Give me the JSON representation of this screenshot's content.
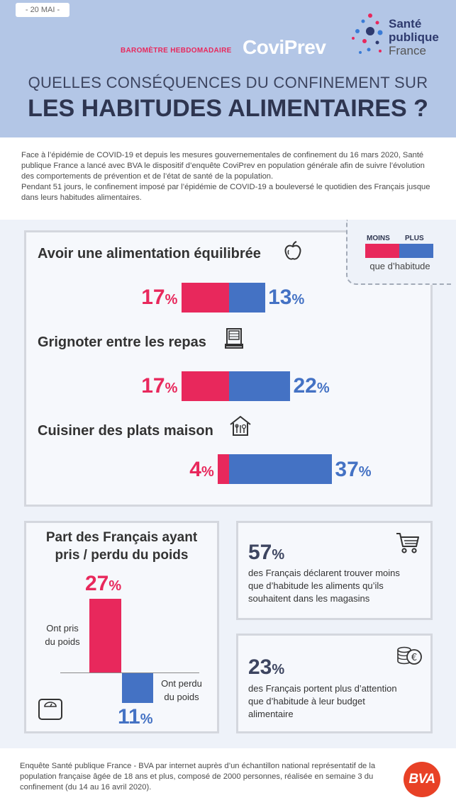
{
  "header": {
    "date": "- 20 MAI -",
    "barometre": "BAROMÈTRE HEBDOMADAIRE",
    "coviprev": "CoviPrev",
    "logo": {
      "line1": "Santé",
      "line2": "publique",
      "line3": "France"
    },
    "title_line1": "QUELLES CONSÉQUENCES DU CONFINEMENT SUR",
    "title_line2": "LES HABITUDES ALIMENTAIRES ?"
  },
  "intro": {
    "paragraph1": "Face à l’épidémie de COVID-19 et depuis les mesures gouvernementales de confinement du 16 mars 2020, Santé publique France a lancé avec BVA le dispositif d’enquête CoviPrev en population générale afin de suivre l’évolution des comportements de prévention et de l’état de santé de la population.",
    "paragraph2": "Pendant 51 jours, le confinement imposé par l’épidémie de COVID-19 a bouleversé le quotidien des Français jusque dans leurs habitudes alimentaires."
  },
  "legend": {
    "moins": "MOINS",
    "plus": "PLUS",
    "caption": "que d’habitude",
    "colors": {
      "moins": "#e8285c",
      "plus": "#4472c4"
    }
  },
  "habits": [
    {
      "label": "Avoir une alimentation équilibrée",
      "icon": "apple-icon",
      "moins": "17",
      "plus": "13",
      "moins_value": 17,
      "plus_value": 13
    },
    {
      "label": "Grignoter entre les repas",
      "icon": "vending-machine-icon",
      "moins": "17",
      "plus": "22",
      "moins_value": 17,
      "plus_value": 22
    },
    {
      "label": "Cuisiner des plats maison",
      "icon": "home-cooking-icon",
      "moins": "4",
      "plus": "37",
      "moins_value": 4,
      "plus_value": 37
    }
  ],
  "percent_symbol": "%",
  "weight": {
    "title_line1": "Part des Français ayant",
    "title_line2": "pris / perdu du poids",
    "gain_pct": "27",
    "loss_pct": "11",
    "gain_value": 27,
    "loss_value": 11,
    "gain_label_line1": "Ont pris",
    "gain_label_line2": "du poids",
    "loss_label_line1": "Ont perdu",
    "loss_label_line2": "du poids"
  },
  "stats": [
    {
      "value": "57",
      "text_line1": "des Français déclarent trouver moins",
      "text_line2": "que d’habitude les aliments qu’ils",
      "text_line3": "souhaitent dans les magasins",
      "icon": "shopping-cart-icon"
    },
    {
      "value": "23",
      "text_line1": "des Français portent plus d’attention",
      "text_line2": "que d’habitude à leur budget",
      "text_line3": "alimentaire",
      "icon": "coins-euro-icon"
    }
  ],
  "footer": {
    "text": "Enquête Santé publique France - BVA par internet auprès d’un échantillon national représentatif de la population française âgée de 18 ans et plus, composé de 2000 personnes, réalisée en semaine 3 du confinement (du 14 au 16 avril 2020).",
    "bva_logo": "BVA"
  }
}
